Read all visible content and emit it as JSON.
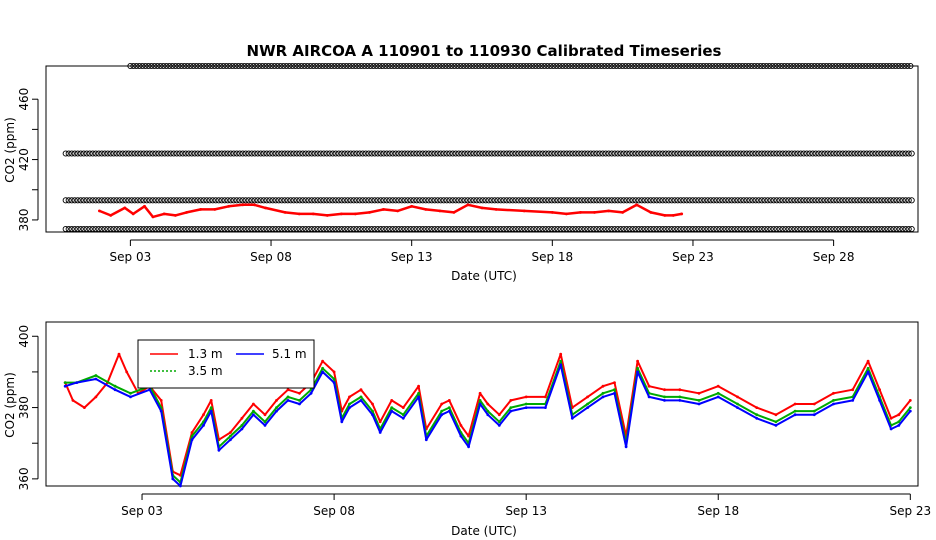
{
  "title": "NWR   AIRCOA  A   110901  to  110930   Calibrated Timeseries",
  "colors": {
    "series_1_3m": "#ff0000",
    "series_3_5m": "#00aa00",
    "series_5_1m": "#0000ff",
    "flag": "#000000"
  },
  "chart_data": [
    {
      "type": "scatter",
      "x_is_date": true,
      "xlabel": "Date (UTC)",
      "ylabel": "CO2 (ppm)",
      "xlim": [
        "2011-08-31",
        "2011-10-01"
      ],
      "ylim": [
        372,
        482
      ],
      "xticks": [
        {
          "date": "2011-09-03",
          "label": "Sep 03"
        },
        {
          "date": "2011-09-08",
          "label": "Sep 08"
        },
        {
          "date": "2011-09-13",
          "label": "Sep 13"
        },
        {
          "date": "2011-09-18",
          "label": "Sep 18"
        },
        {
          "date": "2011-09-23",
          "label": "Sep 23"
        },
        {
          "date": "2011-09-28",
          "label": "Sep 28"
        }
      ],
      "yticks": [
        380,
        420,
        460
      ],
      "yticks_drawn_only": [
        400,
        440
      ],
      "flag_rows": [
        {
          "y": 482,
          "x_from": "2011-09-03",
          "x_to": "2011-09-30.8"
        },
        {
          "y": 424,
          "x_from": "2011-08-31.7",
          "x_to": "2011-09-30.8"
        },
        {
          "y": 393,
          "x_from": "2011-08-31.7",
          "x_to": "2011-09-30.8"
        },
        {
          "y": 374,
          "x_from": "2011-08-31.7",
          "x_to": "2011-09-30.8"
        }
      ],
      "series": [
        {
          "name": "1.3 m",
          "values": [
            [
              1.9,
              386
            ],
            [
              2.3,
              383
            ],
            [
              2.8,
              388
            ],
            [
              3.1,
              384
            ],
            [
              3.5,
              389
            ],
            [
              3.8,
              382
            ],
            [
              4.2,
              384
            ],
            [
              4.6,
              383
            ],
            [
              5.0,
              385
            ],
            [
              5.5,
              387
            ],
            [
              6.0,
              387
            ],
            [
              6.5,
              389
            ],
            [
              7.0,
              390
            ],
            [
              7.4,
              390
            ],
            [
              7.8,
              388
            ],
            [
              8.5,
              385
            ],
            [
              9.0,
              384
            ],
            [
              9.5,
              384
            ],
            [
              10.0,
              383
            ],
            [
              10.5,
              384
            ],
            [
              11.0,
              384
            ],
            [
              11.5,
              385
            ],
            [
              12.0,
              387
            ],
            [
              12.5,
              386
            ],
            [
              13.0,
              389
            ],
            [
              13.5,
              387
            ],
            [
              14.0,
              386
            ],
            [
              14.5,
              385
            ],
            [
              15.0,
              390
            ],
            [
              15.5,
              388
            ],
            [
              16.0,
              387
            ],
            [
              17.0,
              386
            ],
            [
              18.0,
              385
            ],
            [
              18.5,
              384
            ],
            [
              19.0,
              385
            ],
            [
              19.5,
              385
            ],
            [
              20.0,
              386
            ],
            [
              20.5,
              385
            ],
            [
              21.0,
              390
            ],
            [
              21.5,
              385
            ],
            [
              22.0,
              383
            ],
            [
              22.3,
              383
            ],
            [
              22.6,
              384
            ]
          ]
        }
      ]
    },
    {
      "type": "line",
      "x_is_date": true,
      "xlabel": "Date (UTC)",
      "ylabel": "CO2 (ppm)",
      "xlim": [
        "2011-08-31.5",
        "2011-09-23.2"
      ],
      "ylim": [
        358,
        404
      ],
      "xticks": [
        {
          "date": "2011-09-03",
          "label": "Sep 03"
        },
        {
          "date": "2011-09-08",
          "label": "Sep 08"
        },
        {
          "date": "2011-09-13",
          "label": "Sep 13"
        },
        {
          "date": "2011-09-18",
          "label": "Sep 18"
        },
        {
          "date": "2011-09-23",
          "label": "Sep 23"
        }
      ],
      "yticks": [
        360,
        380,
        400
      ],
      "yticks_drawn_only": [
        370,
        390
      ],
      "legend": {
        "placement": "top-left",
        "entries": [
          "1.3 m",
          "3.5 m",
          "5.1 m"
        ]
      },
      "series": [
        {
          "name": "1.3 m",
          "values": [
            [
              1.0,
              387
            ],
            [
              1.2,
              382
            ],
            [
              1.5,
              380
            ],
            [
              1.8,
              383
            ],
            [
              2.1,
              387
            ],
            [
              2.4,
              395
            ],
            [
              2.6,
              390
            ],
            [
              2.9,
              384
            ],
            [
              3.2,
              386
            ],
            [
              3.5,
              382
            ],
            [
              3.8,
              362
            ],
            [
              4.0,
              361
            ],
            [
              4.3,
              373
            ],
            [
              4.6,
              378
            ],
            [
              4.8,
              382
            ],
            [
              5.0,
              371
            ],
            [
              5.3,
              373
            ],
            [
              5.6,
              377
            ],
            [
              5.9,
              381
            ],
            [
              6.2,
              378
            ],
            [
              6.5,
              382
            ],
            [
              6.8,
              385
            ],
            [
              7.1,
              384
            ],
            [
              7.4,
              387
            ],
            [
              7.7,
              393
            ],
            [
              8.0,
              390
            ],
            [
              8.2,
              379
            ],
            [
              8.4,
              383
            ],
            [
              8.7,
              385
            ],
            [
              9.0,
              381
            ],
            [
              9.2,
              376
            ],
            [
              9.5,
              382
            ],
            [
              9.8,
              380
            ],
            [
              10.2,
              386
            ],
            [
              10.4,
              374
            ],
            [
              10.8,
              381
            ],
            [
              11.0,
              382
            ],
            [
              11.3,
              375
            ],
            [
              11.5,
              372
            ],
            [
              11.8,
              384
            ],
            [
              12.0,
              381
            ],
            [
              12.3,
              378
            ],
            [
              12.6,
              382
            ],
            [
              13.0,
              383
            ],
            [
              13.5,
              383
            ],
            [
              13.9,
              395
            ],
            [
              14.2,
              380
            ],
            [
              14.6,
              383
            ],
            [
              15.0,
              386
            ],
            [
              15.3,
              387
            ],
            [
              15.6,
              372
            ],
            [
              15.9,
              393
            ],
            [
              16.2,
              386
            ],
            [
              16.6,
              385
            ],
            [
              17.0,
              385
            ],
            [
              17.5,
              384
            ],
            [
              18.0,
              386
            ],
            [
              18.5,
              383
            ],
            [
              19.0,
              380
            ],
            [
              19.5,
              378
            ],
            [
              20.0,
              381
            ],
            [
              20.5,
              381
            ],
            [
              21.0,
              384
            ],
            [
              21.5,
              385
            ],
            [
              21.9,
              393
            ],
            [
              22.2,
              385
            ],
            [
              22.5,
              377
            ],
            [
              22.7,
              378
            ],
            [
              23.0,
              382
            ]
          ]
        },
        {
          "name": "3.5 m",
          "values": [
            [
              1.0,
              387
            ],
            [
              1.3,
              387
            ],
            [
              1.8,
              389
            ],
            [
              2.3,
              386
            ],
            [
              2.7,
              384
            ],
            [
              3.2,
              386
            ],
            [
              3.5,
              380
            ],
            [
              3.8,
              361
            ],
            [
              4.0,
              359
            ],
            [
              4.3,
              372
            ],
            [
              4.6,
              376
            ],
            [
              4.8,
              380
            ],
            [
              5.0,
              369
            ],
            [
              5.3,
              372
            ],
            [
              5.6,
              375
            ],
            [
              5.9,
              379
            ],
            [
              6.2,
              376
            ],
            [
              6.5,
              380
            ],
            [
              6.8,
              383
            ],
            [
              7.1,
              382
            ],
            [
              7.4,
              385
            ],
            [
              7.7,
              391
            ],
            [
              8.0,
              388
            ],
            [
              8.2,
              377
            ],
            [
              8.4,
              381
            ],
            [
              8.7,
              383
            ],
            [
              9.0,
              379
            ],
            [
              9.2,
              374
            ],
            [
              9.5,
              380
            ],
            [
              9.8,
              378
            ],
            [
              10.2,
              384
            ],
            [
              10.4,
              372
            ],
            [
              10.8,
              379
            ],
            [
              11.0,
              380
            ],
            [
              11.3,
              373
            ],
            [
              11.5,
              370
            ],
            [
              11.8,
              382
            ],
            [
              12.0,
              379
            ],
            [
              12.3,
              376
            ],
            [
              12.6,
              380
            ],
            [
              13.0,
              381
            ],
            [
              13.5,
              381
            ],
            [
              13.9,
              393
            ],
            [
              14.2,
              378
            ],
            [
              14.6,
              381
            ],
            [
              15.0,
              384
            ],
            [
              15.3,
              385
            ],
            [
              15.6,
              370
            ],
            [
              15.9,
              391
            ],
            [
              16.2,
              384
            ],
            [
              16.6,
              383
            ],
            [
              17.0,
              383
            ],
            [
              17.5,
              382
            ],
            [
              18.0,
              384
            ],
            [
              18.5,
              381
            ],
            [
              19.0,
              378
            ],
            [
              19.5,
              376
            ],
            [
              20.0,
              379
            ],
            [
              20.5,
              379
            ],
            [
              21.0,
              382
            ],
            [
              21.5,
              383
            ],
            [
              21.9,
              391
            ],
            [
              22.2,
              383
            ],
            [
              22.5,
              375
            ],
            [
              22.7,
              376
            ],
            [
              23.0,
              380
            ]
          ]
        },
        {
          "name": "5.1 m",
          "values": [
            [
              1.0,
              386
            ],
            [
              1.3,
              387
            ],
            [
              1.8,
              388
            ],
            [
              2.3,
              385
            ],
            [
              2.7,
              383
            ],
            [
              3.2,
              385
            ],
            [
              3.5,
              379
            ],
            [
              3.8,
              360
            ],
            [
              4.0,
              358
            ],
            [
              4.3,
              371
            ],
            [
              4.6,
              375
            ],
            [
              4.8,
              379
            ],
            [
              5.0,
              368
            ],
            [
              5.3,
              371
            ],
            [
              5.6,
              374
            ],
            [
              5.9,
              378
            ],
            [
              6.2,
              375
            ],
            [
              6.5,
              379
            ],
            [
              6.8,
              382
            ],
            [
              7.1,
              381
            ],
            [
              7.4,
              384
            ],
            [
              7.7,
              390
            ],
            [
              8.0,
              387
            ],
            [
              8.2,
              376
            ],
            [
              8.4,
              380
            ],
            [
              8.7,
              382
            ],
            [
              9.0,
              378
            ],
            [
              9.2,
              373
            ],
            [
              9.5,
              379
            ],
            [
              9.8,
              377
            ],
            [
              10.2,
              383
            ],
            [
              10.4,
              371
            ],
            [
              10.8,
              378
            ],
            [
              11.0,
              379
            ],
            [
              11.3,
              372
            ],
            [
              11.5,
              369
            ],
            [
              11.8,
              381
            ],
            [
              12.0,
              378
            ],
            [
              12.3,
              375
            ],
            [
              12.6,
              379
            ],
            [
              13.0,
              380
            ],
            [
              13.5,
              380
            ],
            [
              13.9,
              392
            ],
            [
              14.2,
              377
            ],
            [
              14.6,
              380
            ],
            [
              15.0,
              383
            ],
            [
              15.3,
              384
            ],
            [
              15.6,
              369
            ],
            [
              15.9,
              390
            ],
            [
              16.2,
              383
            ],
            [
              16.6,
              382
            ],
            [
              17.0,
              382
            ],
            [
              17.5,
              381
            ],
            [
              18.0,
              383
            ],
            [
              18.5,
              380
            ],
            [
              19.0,
              377
            ],
            [
              19.5,
              375
            ],
            [
              20.0,
              378
            ],
            [
              20.5,
              378
            ],
            [
              21.0,
              381
            ],
            [
              21.5,
              382
            ],
            [
              21.9,
              390
            ],
            [
              22.2,
              382
            ],
            [
              22.5,
              374
            ],
            [
              22.7,
              375
            ],
            [
              23.0,
              379
            ]
          ]
        }
      ]
    }
  ]
}
